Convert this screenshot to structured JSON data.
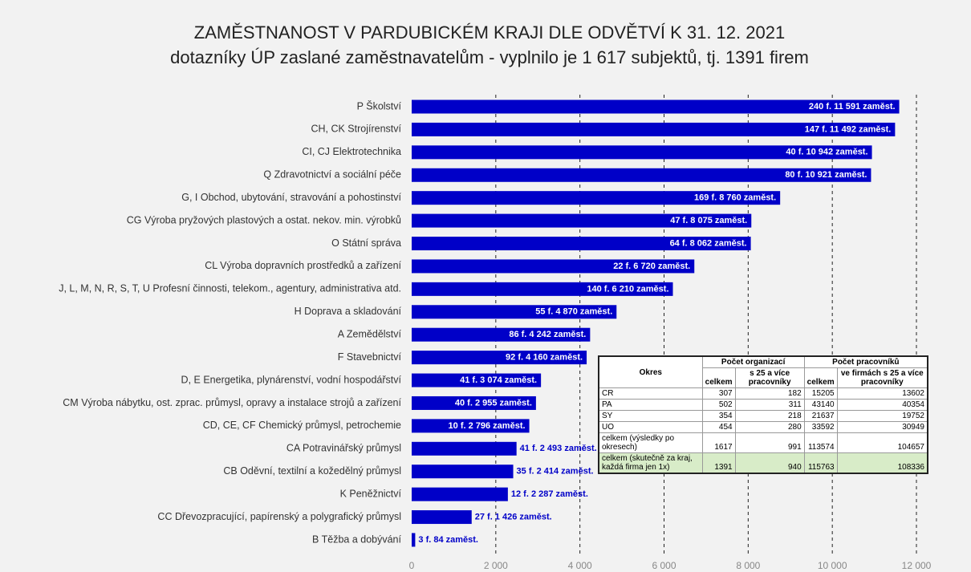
{
  "chart_data": {
    "type": "barh",
    "title": "ZAMĚSTNANOST V PARDUBICKÉM KRAJI DLE ODVĚTVÍ K 31. 12. 2021",
    "subtitle": "dotazníky ÚP zaslané zaměstnavatelům - vyplnilo je 1 617 subjektů, tj. 1391 firem",
    "categories": [
      "P Školství",
      "CH, CK Strojírenství",
      "CI, CJ Elektrotechnika",
      "Q Zdravotnictví a sociální péče",
      "G, I Obchod, ubytování, stravování a pohostinství",
      "CG Výroba pryžových plastových a ostat. nekov. min. výrobků",
      "O Státní správa",
      "CL Výroba dopravních prostředků a zařízení",
      "J, L, M, N, R, S, T, U Profesní činnosti, telekom., agentury, administrativa atd.",
      "H Doprava a skladování",
      "A Zemědělství",
      "F Stavebnictví",
      "D, E Energetika, plynárenství, vodní hospodářství",
      "CM Výroba nábytku, ost. zprac. průmysl, opravy a instalace strojů a zařízení",
      "CD, CE, CF Chemický průmysl, petrochemie",
      "CA Potravinářský průmysl",
      "CB Oděvní, textilní a kožedělný průmysl",
      "K Peněžnictví",
      "CC Dřevozpracující, papírenský a polygrafický průmysl",
      "B Těžba a dobývání"
    ],
    "values": [
      11591,
      11492,
      10942,
      10921,
      8760,
      8075,
      8062,
      6720,
      6210,
      4870,
      4242,
      4160,
      3074,
      2955,
      2796,
      2493,
      2414,
      2287,
      1426,
      84
    ],
    "value_labels": [
      "240 f.  11 591 zaměst.",
      "147 f.  11 492 zaměst.",
      "40 f.  10 942 zaměst.",
      "80 f.  10 921 zaměst.",
      "169 f.  8 760 zaměst.",
      "47 f.  8 075 zaměst.",
      "64 f.  8 062 zaměst.",
      "22 f.  6 720 zaměst.",
      "140 f.  6 210 zaměst.",
      "55 f.  4 870 zaměst.",
      "86 f.  4 242 zaměst.",
      "92 f.  4 160 zaměst.",
      "41 f.  3 074 zaměst.",
      "40 f.  2 955 zaměst.",
      "10 f.  2 796 zaměst.",
      "41 f.  2 493 zaměst.",
      "35 f.  2 414 zaměst.",
      "12 f.  2 287 zaměst.",
      "27 f.  1 426 zaměst.",
      "3 f.  84 zaměst."
    ],
    "color": "#0000c8",
    "xlim": [
      0,
      12000
    ],
    "xticks": [
      0,
      {
        "value": 2000,
        "label": "2 000"
      },
      {
        "value": 4000,
        "label": "4 000"
      },
      {
        "value": 6000,
        "label": "6 000"
      },
      {
        "value": 8000,
        "label": "8 000"
      },
      {
        "value": 10000,
        "label": "10 000"
      },
      {
        "value": 12000,
        "label": "12 000"
      }
    ],
    "grid": true,
    "table": {
      "header": {
        "okres": "Okres",
        "groups": [
          "Počet organizací",
          "Počet pracovníků"
        ],
        "columns": [
          "celkem",
          "s 25 a více pracovníky",
          "celkem",
          "ve firmách s 25 a více pracovníky"
        ]
      },
      "rows": [
        [
          "CR",
          307,
          182,
          15205,
          13602
        ],
        [
          "PA",
          502,
          311,
          43140,
          40354
        ],
        [
          "SY",
          354,
          218,
          21637,
          19752
        ],
        [
          "UO",
          454,
          280,
          33592,
          30949
        ],
        [
          "celkem (výsledky po okresech)",
          1617,
          991,
          113574,
          104657
        ],
        [
          "celkem (skutečně za kraj, každá firma jen 1x)",
          1391,
          940,
          115763,
          108336
        ]
      ]
    }
  }
}
